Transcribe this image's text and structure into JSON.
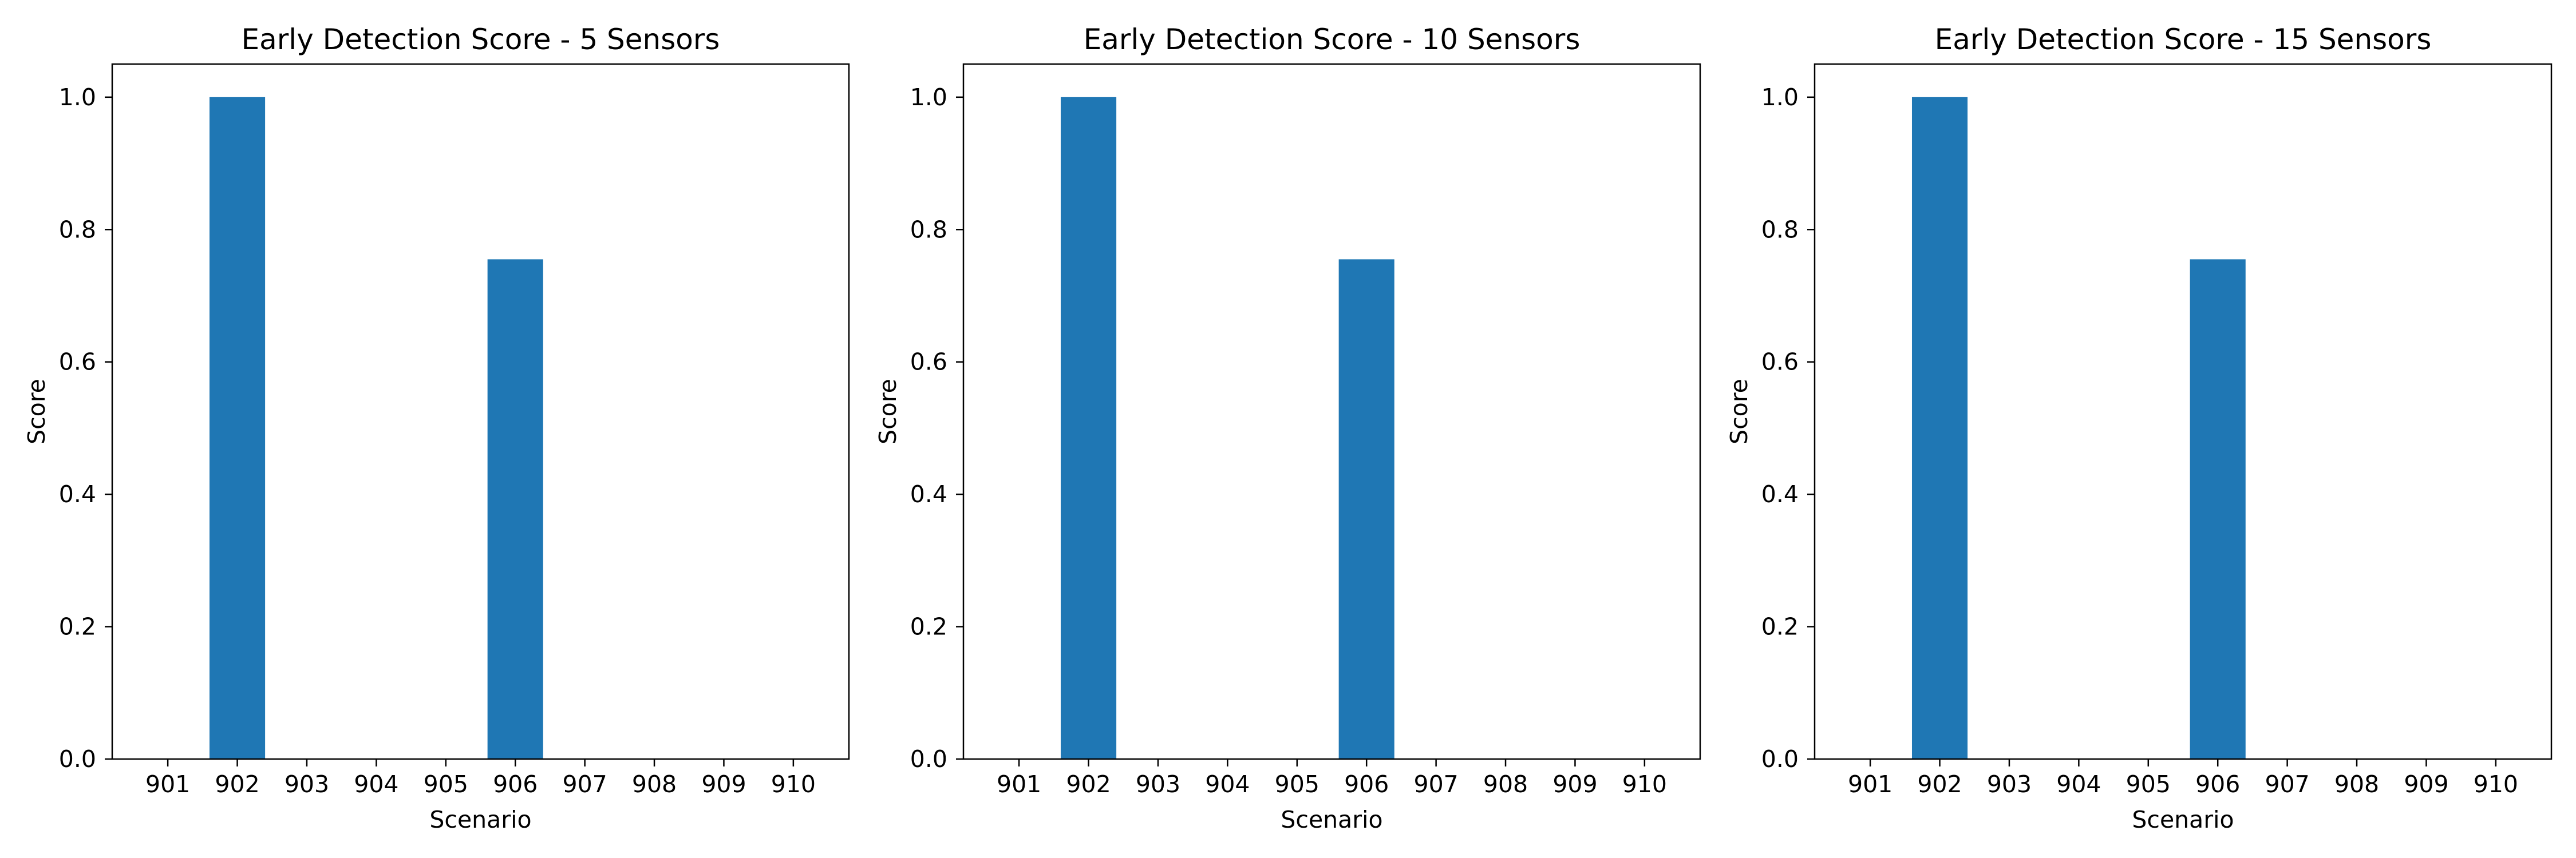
{
  "chart_data": [
    {
      "type": "bar",
      "title": "Early Detection Score - 5 Sensors",
      "xlabel": "Scenario",
      "ylabel": "Score",
      "categories": [
        "901",
        "902",
        "903",
        "904",
        "905",
        "906",
        "907",
        "908",
        "909",
        "910"
      ],
      "values": [
        0,
        1.0,
        0,
        0,
        0,
        0.755,
        0,
        0,
        0,
        0
      ],
      "ylim": [
        0,
        1.05
      ],
      "yticks": [
        "0.0",
        "0.2",
        "0.4",
        "0.6",
        "0.8",
        "1.0"
      ],
      "grid": false,
      "bar_color": "#1f77b4"
    },
    {
      "type": "bar",
      "title": "Early Detection Score - 10 Sensors",
      "xlabel": "Scenario",
      "ylabel": "Score",
      "categories": [
        "901",
        "902",
        "903",
        "904",
        "905",
        "906",
        "907",
        "908",
        "909",
        "910"
      ],
      "values": [
        0,
        1.0,
        0,
        0,
        0,
        0.755,
        0,
        0,
        0,
        0
      ],
      "ylim": [
        0,
        1.05
      ],
      "yticks": [
        "0.0",
        "0.2",
        "0.4",
        "0.6",
        "0.8",
        "1.0"
      ],
      "grid": false,
      "bar_color": "#1f77b4"
    },
    {
      "type": "bar",
      "title": "Early Detection Score - 15 Sensors",
      "xlabel": "Scenario",
      "ylabel": "Score",
      "categories": [
        "901",
        "902",
        "903",
        "904",
        "905",
        "906",
        "907",
        "908",
        "909",
        "910"
      ],
      "values": [
        0,
        1.0,
        0,
        0,
        0,
        0.755,
        0,
        0,
        0,
        0
      ],
      "ylim": [
        0,
        1.05
      ],
      "yticks": [
        "0.0",
        "0.2",
        "0.4",
        "0.6",
        "0.8",
        "1.0"
      ],
      "grid": false,
      "bar_color": "#1f77b4"
    }
  ]
}
